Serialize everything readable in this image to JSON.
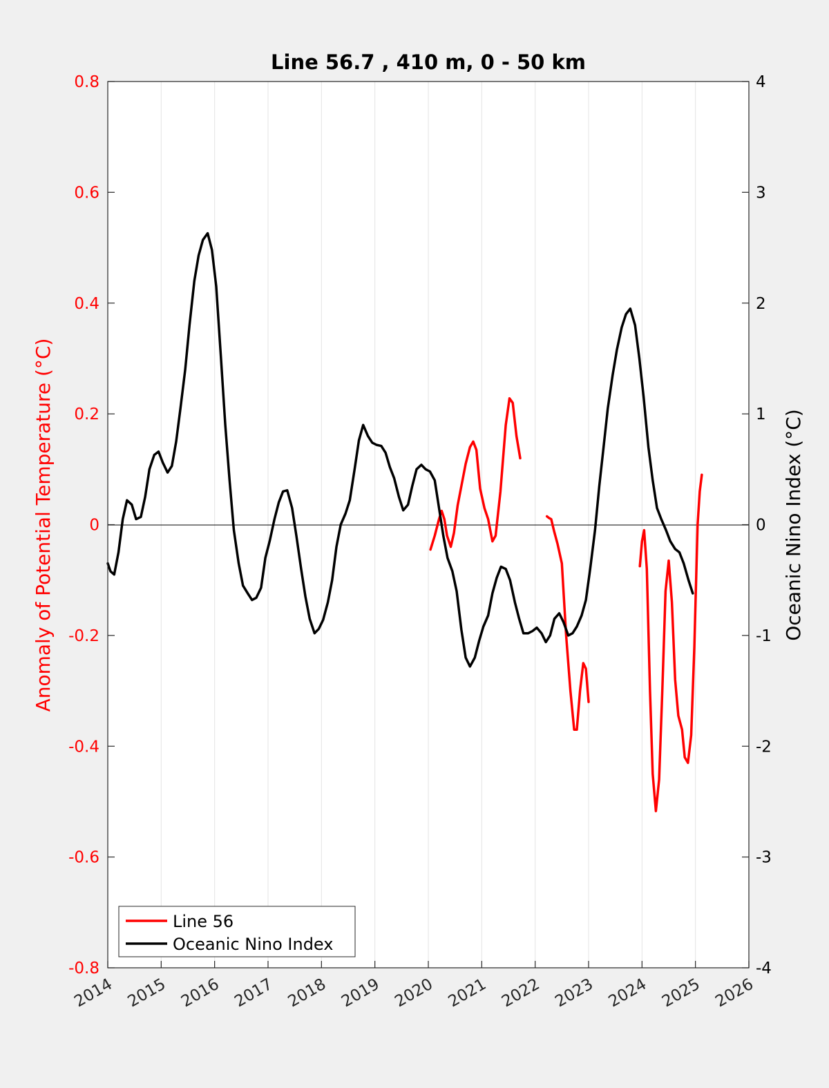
{
  "chart_data": {
    "type": "line",
    "title": "Line 56.7 , 410 m, 0 - 50 km",
    "ylabel_left": "Anomaly of Potential Temperature (°C)",
    "ylabel_right": "Oceanic Nino Index (°C)",
    "xlim": [
      2014,
      2026
    ],
    "ylim_left": [
      -0.8,
      0.8
    ],
    "ylim_right": [
      -4,
      4
    ],
    "x_ticks": [
      2014,
      2015,
      2016,
      2017,
      2018,
      2019,
      2020,
      2021,
      2022,
      2023,
      2024,
      2025,
      2026
    ],
    "x_tick_labels": [
      "2014",
      "2015",
      "2016",
      "2017",
      "2018",
      "2019",
      "2020",
      "2021",
      "2022",
      "2023",
      "2024",
      "2025",
      "2026"
    ],
    "y_ticks_left": [
      0.8,
      0.6,
      0.4,
      0.2,
      0,
      -0.2,
      -0.4,
      -0.6,
      -0.8
    ],
    "y_tick_labels_left": [
      "0.8",
      "0.6",
      "0.4",
      "0.2",
      "0",
      "-0.2",
      "-0.4",
      "-0.6",
      "-0.8"
    ],
    "y_ticks_right": [
      4,
      3,
      2,
      1,
      0,
      -1,
      -2,
      -3,
      -4
    ],
    "y_tick_labels_right": [
      "4",
      "3",
      "2",
      "1",
      "0",
      "-1",
      "-2",
      "-3",
      "-4"
    ],
    "grid": "vertical",
    "legend_position": "bottom-left",
    "colors": {
      "line56": "#ff0000",
      "oni": "#000000",
      "left_axis": "#ff0000",
      "right_axis": "#000000"
    },
    "series": [
      {
        "name": "Line 56",
        "axis": "left",
        "segments": [
          [
            [
              2020.04,
              -0.045
            ],
            [
              2020.12,
              -0.02
            ],
            [
              2020.2,
              0.01
            ],
            [
              2020.25,
              0.025
            ],
            [
              2020.3,
              0.01
            ],
            [
              2020.35,
              -0.02
            ],
            [
              2020.42,
              -0.04
            ],
            [
              2020.48,
              -0.015
            ],
            [
              2020.55,
              0.035
            ],
            [
              2020.62,
              0.07
            ],
            [
              2020.7,
              0.11
            ],
            [
              2020.78,
              0.14
            ],
            [
              2020.84,
              0.15
            ],
            [
              2020.9,
              0.135
            ],
            [
              2020.97,
              0.065
            ],
            [
              2021.05,
              0.03
            ],
            [
              2021.12,
              0.01
            ],
            [
              2021.2,
              -0.03
            ],
            [
              2021.26,
              -0.02
            ],
            [
              2021.35,
              0.06
            ],
            [
              2021.45,
              0.18
            ],
            [
              2021.52,
              0.228
            ],
            [
              2021.58,
              0.22
            ],
            [
              2021.65,
              0.16
            ],
            [
              2021.72,
              0.12
            ]
          ],
          [
            [
              2022.22,
              0.015
            ],
            [
              2022.26,
              0.012
            ],
            [
              2022.3,
              0.01
            ],
            [
              2022.35,
              -0.01
            ],
            [
              2022.42,
              -0.035
            ],
            [
              2022.5,
              -0.07
            ],
            [
              2022.58,
              -0.2
            ],
            [
              2022.66,
              -0.3
            ],
            [
              2022.73,
              -0.37
            ],
            [
              2022.78,
              -0.37
            ],
            [
              2022.84,
              -0.3
            ],
            [
              2022.9,
              -0.25
            ],
            [
              2022.95,
              -0.26
            ],
            [
              2023.0,
              -0.32
            ]
          ],
          [
            [
              2023.96,
              -0.075
            ],
            [
              2024.0,
              -0.03
            ],
            [
              2024.04,
              -0.01
            ],
            [
              2024.09,
              -0.08
            ],
            [
              2024.15,
              -0.3
            ],
            [
              2024.2,
              -0.45
            ],
            [
              2024.26,
              -0.517
            ],
            [
              2024.32,
              -0.46
            ],
            [
              2024.38,
              -0.3
            ],
            [
              2024.44,
              -0.12
            ],
            [
              2024.5,
              -0.065
            ],
            [
              2024.56,
              -0.14
            ],
            [
              2024.62,
              -0.28
            ],
            [
              2024.68,
              -0.345
            ],
            [
              2024.75,
              -0.37
            ],
            [
              2024.8,
              -0.42
            ],
            [
              2024.86,
              -0.43
            ],
            [
              2024.92,
              -0.38
            ],
            [
              2024.98,
              -0.22
            ],
            [
              2025.04,
              0.0
            ],
            [
              2025.08,
              0.06
            ],
            [
              2025.12,
              0.09
            ]
          ]
        ]
      },
      {
        "name": "Oceanic Nino Index",
        "axis": "right",
        "segments": [
          [
            [
              2014.0,
              -0.35
            ],
            [
              2014.05,
              -0.42
            ],
            [
              2014.12,
              -0.45
            ],
            [
              2014.2,
              -0.25
            ],
            [
              2014.28,
              0.05
            ],
            [
              2014.36,
              0.22
            ],
            [
              2014.45,
              0.18
            ],
            [
              2014.53,
              0.05
            ],
            [
              2014.62,
              0.07
            ],
            [
              2014.7,
              0.25
            ],
            [
              2014.78,
              0.5
            ],
            [
              2014.87,
              0.63
            ],
            [
              2014.95,
              0.66
            ],
            [
              2015.03,
              0.56
            ],
            [
              2015.12,
              0.47
            ],
            [
              2015.2,
              0.53
            ],
            [
              2015.28,
              0.75
            ],
            [
              2015.36,
              1.05
            ],
            [
              2015.45,
              1.4
            ],
            [
              2015.53,
              1.8
            ],
            [
              2015.62,
              2.2
            ],
            [
              2015.7,
              2.43
            ],
            [
              2015.78,
              2.57
            ],
            [
              2015.87,
              2.63
            ],
            [
              2015.95,
              2.48
            ],
            [
              2016.03,
              2.15
            ],
            [
              2016.12,
              1.5
            ],
            [
              2016.2,
              0.9
            ],
            [
              2016.28,
              0.4
            ],
            [
              2016.36,
              -0.05
            ],
            [
              2016.45,
              -0.35
            ],
            [
              2016.53,
              -0.55
            ],
            [
              2016.62,
              -0.62
            ],
            [
              2016.7,
              -0.68
            ],
            [
              2016.78,
              -0.66
            ],
            [
              2016.87,
              -0.57
            ],
            [
              2016.95,
              -0.3
            ],
            [
              2017.03,
              -0.15
            ],
            [
              2017.12,
              0.05
            ],
            [
              2017.2,
              0.2
            ],
            [
              2017.28,
              0.3
            ],
            [
              2017.36,
              0.31
            ],
            [
              2017.45,
              0.15
            ],
            [
              2017.53,
              -0.1
            ],
            [
              2017.62,
              -0.4
            ],
            [
              2017.7,
              -0.65
            ],
            [
              2017.78,
              -0.85
            ],
            [
              2017.87,
              -0.98
            ],
            [
              2017.95,
              -0.94
            ],
            [
              2018.03,
              -0.86
            ],
            [
              2018.12,
              -0.7
            ],
            [
              2018.2,
              -0.5
            ],
            [
              2018.28,
              -0.2
            ],
            [
              2018.36,
              0.0
            ],
            [
              2018.45,
              0.1
            ],
            [
              2018.53,
              0.22
            ],
            [
              2018.62,
              0.5
            ],
            [
              2018.7,
              0.76
            ],
            [
              2018.78,
              0.9
            ],
            [
              2018.87,
              0.8
            ],
            [
              2018.95,
              0.74
            ],
            [
              2019.03,
              0.72
            ],
            [
              2019.12,
              0.71
            ],
            [
              2019.2,
              0.65
            ],
            [
              2019.28,
              0.52
            ],
            [
              2019.36,
              0.42
            ],
            [
              2019.45,
              0.25
            ],
            [
              2019.53,
              0.13
            ],
            [
              2019.62,
              0.18
            ],
            [
              2019.7,
              0.35
            ],
            [
              2019.78,
              0.5
            ],
            [
              2019.87,
              0.54
            ],
            [
              2019.95,
              0.5
            ],
            [
              2020.03,
              0.48
            ],
            [
              2020.12,
              0.4
            ],
            [
              2020.2,
              0.15
            ],
            [
              2020.28,
              -0.1
            ],
            [
              2020.36,
              -0.3
            ],
            [
              2020.45,
              -0.42
            ],
            [
              2020.53,
              -0.6
            ],
            [
              2020.62,
              -0.95
            ],
            [
              2020.7,
              -1.2
            ],
            [
              2020.78,
              -1.28
            ],
            [
              2020.87,
              -1.2
            ],
            [
              2020.95,
              -1.05
            ],
            [
              2021.03,
              -0.92
            ],
            [
              2021.12,
              -0.82
            ],
            [
              2021.2,
              -0.62
            ],
            [
              2021.28,
              -0.48
            ],
            [
              2021.36,
              -0.38
            ],
            [
              2021.45,
              -0.4
            ],
            [
              2021.53,
              -0.5
            ],
            [
              2021.62,
              -0.7
            ],
            [
              2021.7,
              -0.85
            ],
            [
              2021.78,
              -0.98
            ],
            [
              2021.87,
              -0.98
            ],
            [
              2021.95,
              -0.96
            ],
            [
              2022.03,
              -0.93
            ],
            [
              2022.12,
              -0.98
            ],
            [
              2022.2,
              -1.06
            ],
            [
              2022.28,
              -1.0
            ],
            [
              2022.36,
              -0.85
            ],
            [
              2022.45,
              -0.8
            ],
            [
              2022.53,
              -0.88
            ],
            [
              2022.62,
              -1.0
            ],
            [
              2022.7,
              -0.98
            ],
            [
              2022.78,
              -0.92
            ],
            [
              2022.87,
              -0.82
            ],
            [
              2022.95,
              -0.68
            ],
            [
              2023.03,
              -0.4
            ],
            [
              2023.12,
              -0.05
            ],
            [
              2023.2,
              0.35
            ],
            [
              2023.28,
              0.7
            ],
            [
              2023.36,
              1.05
            ],
            [
              2023.45,
              1.35
            ],
            [
              2023.53,
              1.58
            ],
            [
              2023.62,
              1.78
            ],
            [
              2023.7,
              1.9
            ],
            [
              2023.78,
              1.95
            ],
            [
              2023.87,
              1.8
            ],
            [
              2023.95,
              1.5
            ],
            [
              2024.03,
              1.15
            ],
            [
              2024.12,
              0.7
            ],
            [
              2024.2,
              0.4
            ],
            [
              2024.28,
              0.15
            ],
            [
              2024.36,
              0.05
            ],
            [
              2024.45,
              -0.05
            ],
            [
              2024.53,
              -0.15
            ],
            [
              2024.62,
              -0.22
            ],
            [
              2024.7,
              -0.25
            ],
            [
              2024.78,
              -0.35
            ],
            [
              2024.87,
              -0.5
            ],
            [
              2024.95,
              -0.62
            ]
          ]
        ]
      }
    ]
  },
  "legend": {
    "items": [
      {
        "label": "Line 56",
        "color": "#ff0000"
      },
      {
        "label": "Oceanic Nino Index",
        "color": "#000000"
      }
    ]
  }
}
